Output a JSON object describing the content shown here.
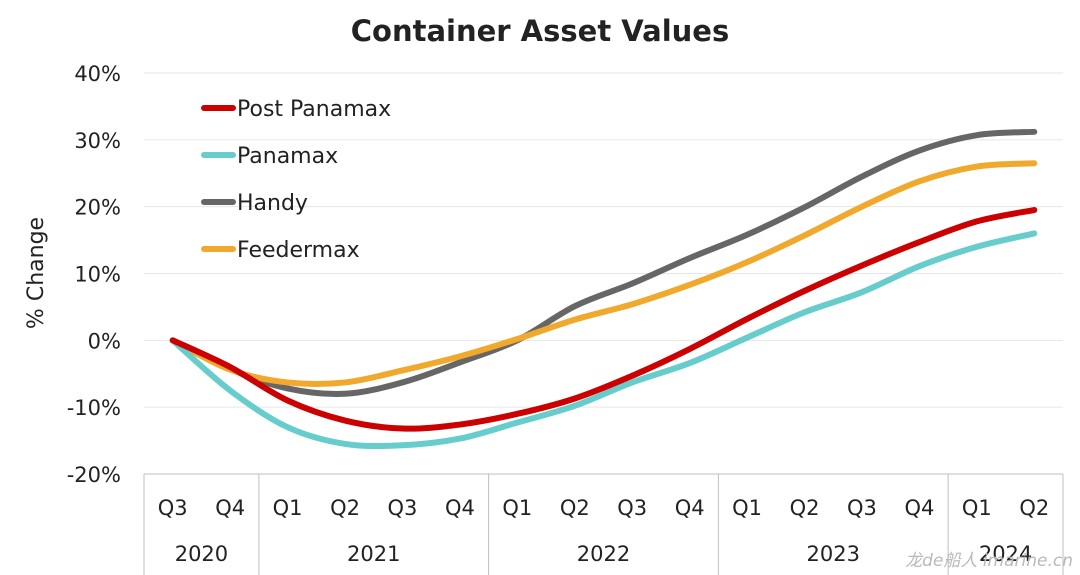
{
  "chart_data": {
    "type": "line",
    "title": "Container Asset Values",
    "ylabel": "% Change",
    "ylim": [
      -20,
      40
    ],
    "yticks": [
      40,
      30,
      20,
      10,
      0,
      -10,
      -20
    ],
    "ytick_labels": [
      "40%",
      "30%",
      "20%",
      "10%",
      "0%",
      "-10%",
      "-20%"
    ],
    "grid": true,
    "legend_position": "top-left",
    "categories": [
      "Q3",
      "Q4",
      "Q1",
      "Q2",
      "Q3",
      "Q4",
      "Q1",
      "Q2",
      "Q3",
      "Q4",
      "Q1",
      "Q2",
      "Q3",
      "Q4",
      "Q1",
      "Q2"
    ],
    "years": [
      {
        "label": "2020",
        "quarters": 2
      },
      {
        "label": "2021",
        "quarters": 4
      },
      {
        "label": "2022",
        "quarters": 4
      },
      {
        "label": "2023",
        "quarters": 4
      },
      {
        "label": "2024",
        "quarters": 2
      }
    ],
    "series": [
      {
        "name": "Post Panamax",
        "color": "#cc0000",
        "values": [
          0,
          -4,
          -9,
          -12,
          -13.2,
          -12.6,
          -11,
          -8.7,
          -5.3,
          -1.3,
          3.2,
          7.4,
          11.2,
          14.7,
          17.8,
          19.5
        ]
      },
      {
        "name": "Panamax",
        "color": "#66cccc",
        "values": [
          0,
          -7.5,
          -13,
          -15.5,
          -15.7,
          -14.7,
          -12.3,
          -9.8,
          -6.3,
          -3.4,
          0.4,
          4.2,
          7.2,
          11.1,
          14,
          16
        ]
      },
      {
        "name": "Handy",
        "color": "#666666",
        "values": [
          0,
          -4.3,
          -7.2,
          -8,
          -6.3,
          -3.3,
          0,
          5.1,
          8.5,
          12.3,
          15.8,
          19.9,
          24.5,
          28.4,
          30.7,
          31.2
        ]
      },
      {
        "name": "Feedermax",
        "color": "#f0a92c",
        "values": [
          0,
          -4.4,
          -6.3,
          -6.3,
          -4.5,
          -2.4,
          0.2,
          3.1,
          5.4,
          8.3,
          11.7,
          15.7,
          20,
          23.8,
          26,
          26.5
        ]
      }
    ]
  },
  "watermark": "龙de船人 imarine.cn"
}
